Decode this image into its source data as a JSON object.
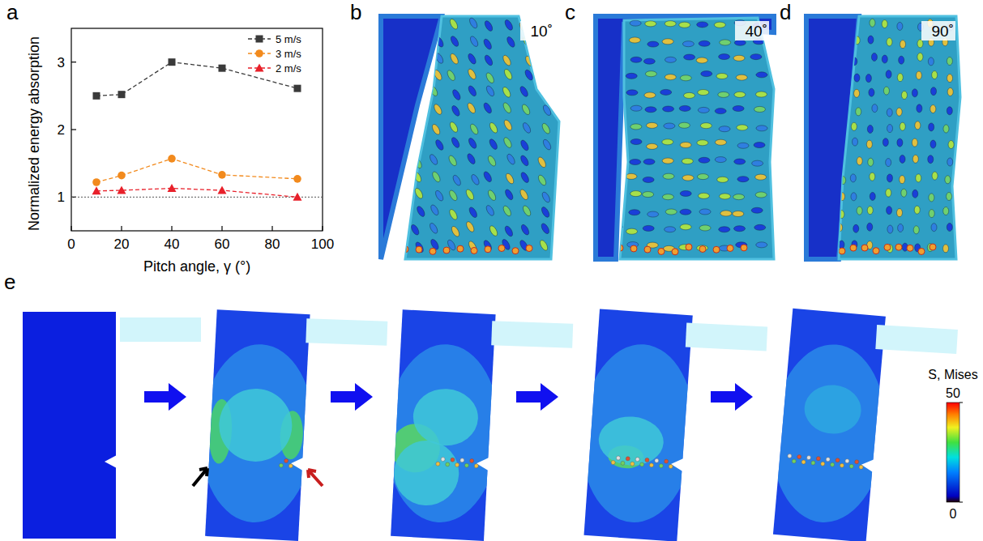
{
  "chart_data": {
    "type": "line",
    "x_label": "Pitch angle, γ (°)",
    "y_label": "Normalized energy absorption",
    "x": [
      10,
      20,
      40,
      60,
      90
    ],
    "series": [
      {
        "name": "5 m/s",
        "color": "#3a3a3a",
        "marker": "square",
        "line_style": "dashed",
        "values": [
          2.5,
          2.52,
          3.0,
          2.91,
          2.61
        ]
      },
      {
        "name": "3 m/s",
        "color": "#f28a1d",
        "marker": "circle",
        "line_style": "dashed",
        "values": [
          1.22,
          1.32,
          1.57,
          1.33,
          1.27
        ]
      },
      {
        "name": "2 m/s",
        "color": "#e8202a",
        "marker": "triangle",
        "line_style": "dashed",
        "values": [
          1.09,
          1.1,
          1.13,
          1.1,
          1.0
        ]
      }
    ],
    "xlim": [
      0,
      100
    ],
    "xticks": [
      0,
      20,
      40,
      60,
      80,
      100
    ],
    "ylim": [
      0.5,
      3.5
    ],
    "yticks": [
      1,
      2,
      3
    ],
    "reference_line": 1,
    "legend": "upper right",
    "grid": false
  },
  "panels": [
    {
      "label": "a"
    },
    {
      "label": "b",
      "angle": "10˚"
    },
    {
      "label": "c",
      "angle": "40˚"
    },
    {
      "label": "d",
      "angle": "90˚"
    },
    {
      "label": "e",
      "colorbar": {
        "title": "S, Mises",
        "range": [
          0,
          50
        ],
        "ticks": [
          0,
          50
        ]
      }
    }
  ]
}
